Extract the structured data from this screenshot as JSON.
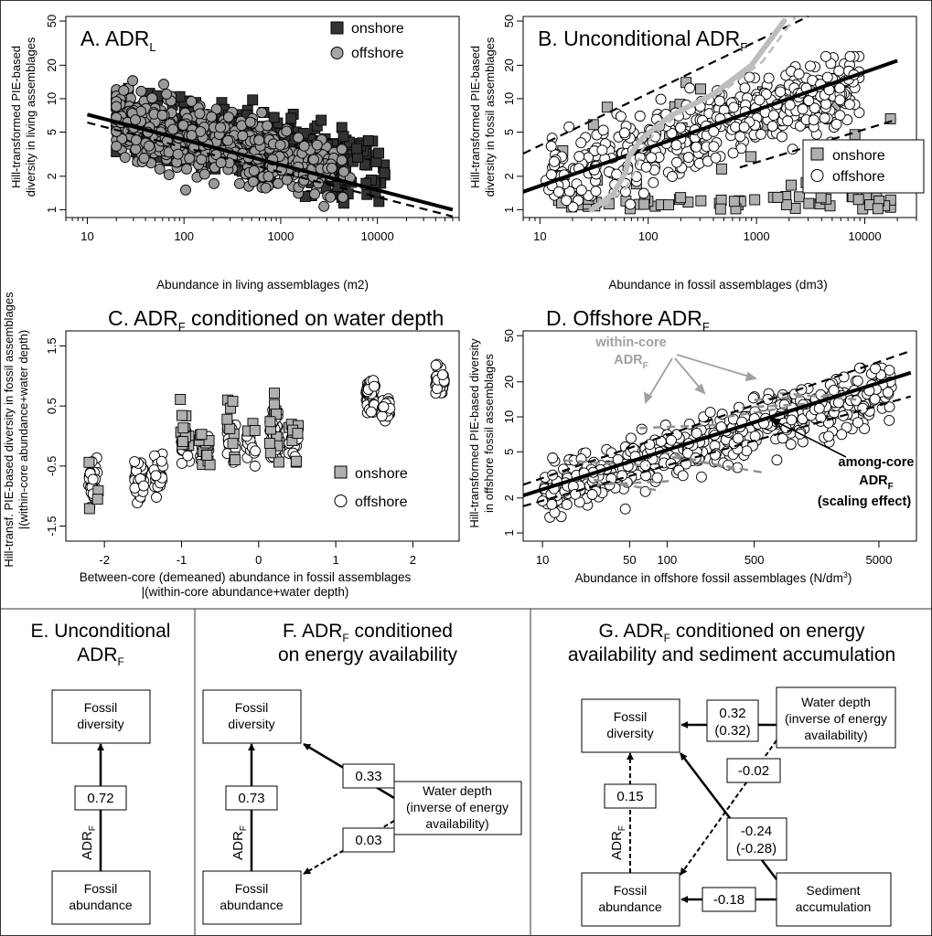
{
  "chart_data": [
    {
      "panel": "A",
      "type": "scatter",
      "title": "A. ADR",
      "title_sub": "L",
      "xlabel": "Abundance in living assemblages (m2)",
      "ylabel": [
        "Hill-transformed PIE-based",
        "diversity in living assemblages"
      ],
      "x_scale": "log",
      "y_scale": "log",
      "xlim": [
        6,
        70000
      ],
      "ylim": [
        0.85,
        55
      ],
      "x_ticks": [
        10,
        100,
        1000,
        10000
      ],
      "x_tick_labels": [
        "10",
        "100",
        "1000",
        "10000"
      ],
      "y_ticks": [
        1,
        2,
        5,
        10,
        20,
        50
      ],
      "y_tick_labels": [
        "1",
        "2",
        "5",
        "10",
        "20",
        "50"
      ],
      "legend": [
        "onshore",
        "offshore"
      ],
      "legend_position": "top-right",
      "fit_lines": [
        {
          "name": "onshore fit",
          "style": "solid",
          "x": [
            10,
            60000
          ],
          "y": [
            7.2,
            1.0
          ]
        },
        {
          "name": "offshore fit",
          "style": "dashed",
          "x": [
            10,
            60000
          ],
          "y": [
            6.1,
            0.87
          ]
        }
      ]
    },
    {
      "panel": "B",
      "type": "scatter",
      "title": "B. Unconditional ADR",
      "title_sub": "F",
      "xlabel": "Abundance in fossil assemblages (dm3)",
      "ylabel": [
        "Hill-transformed PIE-based",
        "diversity in fossil assemblages"
      ],
      "x_scale": "log",
      "y_scale": "log",
      "xlim": [
        7,
        30000
      ],
      "ylim": [
        0.85,
        55
      ],
      "x_ticks": [
        10,
        100,
        1000,
        10000
      ],
      "x_tick_labels": [
        "10",
        "100",
        "1000",
        "10000"
      ],
      "y_ticks": [
        1,
        2,
        5,
        10,
        20,
        50
      ],
      "y_tick_labels": [
        "1",
        "2",
        "5",
        "10",
        "20",
        "50"
      ],
      "legend": [
        "onshore",
        "offshore"
      ],
      "legend_position": "right",
      "fit_lines": [
        {
          "name": "overall fit",
          "style": "solid",
          "x": [
            7,
            20000
          ],
          "y": [
            1.45,
            22
          ]
        },
        {
          "name": "upper confidence",
          "style": "dashed",
          "x": [
            7,
            3000
          ],
          "y": [
            3.2,
            55
          ]
        },
        {
          "name": "lower confidence",
          "style": "dashed",
          "x": [
            700,
            20000
          ],
          "y": [
            2.4,
            6.5
          ]
        }
      ]
    },
    {
      "panel": "C",
      "type": "scatter",
      "title": "C. ADR",
      "title_sub": "F",
      "title_rest": " conditioned on water depth",
      "xlabel": [
        "Between-core (demeaned) abundance in fossil assemblages",
        "|(within-core abundance+water depth)"
      ],
      "ylabel": [
        "Hill-transf. PIE-based diversity in fossil assemblages",
        "|(within-core abundance+water depth)"
      ],
      "x_scale": "linear",
      "y_scale": "linear",
      "xlim": [
        -2.5,
        2.6
      ],
      "ylim": [
        -1.75,
        1.75
      ],
      "x_ticks": [
        -2,
        -1,
        0,
        1,
        2
      ],
      "x_tick_labels": [
        "-2",
        "-1",
        "0",
        "1",
        "2"
      ],
      "y_ticks": [
        -1.5,
        -0.5,
        0.5,
        1.5
      ],
      "y_tick_labels": [
        "-1.5",
        "-0.5",
        "0.5",
        "1.5"
      ],
      "legend": [
        "onshore",
        "offshore"
      ],
      "legend_position": "bottom-right"
    },
    {
      "panel": "D",
      "type": "scatter",
      "title": "D. Offshore ADR",
      "title_sub": "F",
      "xlabel": "Abundance in offshore fossil assemblages (N/dm",
      "xlabel_sup": "3",
      "xlabel_end": ")",
      "ylabel": [
        "Hill-transformed PIE-based diversity",
        "in offshore fossil assemblages"
      ],
      "x_scale": "log",
      "y_scale": "log",
      "xlim": [
        7,
        10000
      ],
      "ylim": [
        0.85,
        55
      ],
      "x_ticks": [
        10,
        50,
        100,
        500,
        5000
      ],
      "x_tick_labels": [
        "10",
        "50",
        "100",
        "500",
        "5000"
      ],
      "y_ticks": [
        1,
        2,
        5,
        10,
        20,
        50
      ],
      "y_tick_labels": [
        "1",
        "2",
        "5",
        "10",
        "20",
        "50"
      ],
      "fit_lines": [
        {
          "name": "among-core fit",
          "style": "solid",
          "x": [
            7,
            9000
          ],
          "y": [
            2.1,
            24
          ]
        },
        {
          "name": "upper confidence",
          "style": "dashed",
          "x": [
            7,
            9000
          ],
          "y": [
            2.6,
            37
          ]
        },
        {
          "name": "lower confidence",
          "style": "dashed",
          "x": [
            7,
            9000
          ],
          "y": [
            1.7,
            15
          ]
        }
      ],
      "annotations": {
        "within_core": [
          "within-core",
          "ADR"
        ],
        "within_core_sub": "F",
        "among_core": [
          "among-core",
          "ADR",
          "(scaling effect)"
        ],
        "among_core_sub": "F"
      }
    }
  ],
  "diagrams": {
    "E": {
      "title": [
        "E. Unconditional",
        "ADR"
      ],
      "title_sub": "F",
      "nodes": {
        "fossil_diversity": [
          "Fossil",
          "diversity"
        ],
        "fossil_abundance": [
          "Fossil",
          "abundance"
        ]
      },
      "path_label": "ADR",
      "path_label_sub": "F",
      "coefficients": {
        "abundance_to_diversity": "0.72"
      }
    },
    "F": {
      "title": [
        "F. ADR",
        "on energy availability"
      ],
      "title_sub": "F",
      "title_rest": " conditioned",
      "nodes": {
        "fossil_diversity": [
          "Fossil",
          "diversity"
        ],
        "fossil_abundance": [
          "Fossil",
          "abundance"
        ],
        "water_depth": [
          "Water depth",
          "(inverse of energy",
          "availability)"
        ]
      },
      "path_label": "ADR",
      "path_label_sub": "F",
      "coefficients": {
        "abundance_to_diversity": "0.73",
        "depth_to_diversity": "0.33",
        "depth_to_abundance": "0.03"
      }
    },
    "G": {
      "title": [
        "G. ADR",
        "availability and sediment accumulation"
      ],
      "title_sub": "F",
      "title_rest": " conditioned on energy",
      "nodes": {
        "fossil_diversity": [
          "Fossil",
          "diversity"
        ],
        "fossil_abundance": [
          "Fossil",
          "abundance"
        ],
        "water_depth": [
          "Water depth",
          "(inverse of energy",
          "availability)"
        ],
        "sediment_accumulation": [
          "Sediment",
          "accumulation"
        ]
      },
      "path_label": "ADR",
      "path_label_sub": "F",
      "coefficients": {
        "abundance_to_diversity": "0.15",
        "depth_to_diversity": [
          "0.32",
          "(0.32)"
        ],
        "depth_to_abundance": "-0.02",
        "sediment_to_diversity": [
          "-0.24",
          "(-0.28)"
        ],
        "sediment_to_abundance": "-0.18"
      }
    }
  }
}
